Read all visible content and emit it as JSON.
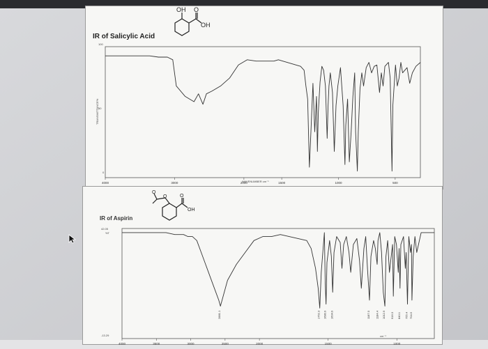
{
  "chart_data": [
    {
      "type": "line",
      "title": "IR of Salicylic Acid",
      "ylabel": "TRANSMITTANCE%",
      "xlabel": "WAVENUMBER cm⁻¹",
      "y_ticks": [
        "100",
        "50",
        "0"
      ],
      "x_ticks": [
        "4000",
        "3000",
        "2000",
        "1500",
        "1000",
        "500"
      ],
      "structure_labels": [
        "OH",
        "O",
        "OH"
      ],
      "xlim": [
        4000,
        450
      ],
      "ylim": [
        0,
        100
      ],
      "grid": false,
      "series": [
        {
          "x": [
            4000,
            3900,
            3800,
            3700,
            3600,
            3500,
            3400,
            3300,
            3240,
            3200,
            3100,
            3000,
            2950,
            2900,
            2860,
            2800,
            2700,
            2600,
            2500,
            2400,
            2300,
            2200,
            2100,
            2050,
            2000,
            1950,
            1900,
            1850,
            1800,
            1760,
            1740,
            1720,
            1700,
            1680,
            1660,
            1640,
            1620,
            1610,
            1600,
            1580,
            1560,
            1540,
            1520,
            1500,
            1490,
            1480,
            1465,
            1440,
            1420,
            1400,
            1380,
            1350,
            1320,
            1300,
            1290,
            1270,
            1250,
            1230,
            1210,
            1190,
            1180,
            1160,
            1150,
            1130,
            1110,
            1090,
            1060,
            1030,
            1000,
            970,
            940,
            910,
            890,
            870,
            850,
            810,
            790,
            770,
            760,
            730,
            710,
            690,
            670,
            650,
            600,
            570,
            540,
            500,
            450
          ],
          "y": [
            93,
            93,
            93,
            93,
            93,
            93,
            92,
            92,
            90,
            70,
            62,
            58,
            64,
            56,
            64,
            66,
            70,
            76,
            86,
            90,
            89,
            89,
            89,
            90,
            89,
            88,
            87,
            86,
            85,
            82,
            70,
            60,
            8,
            40,
            72,
            35,
            62,
            20,
            50,
            73,
            85,
            82,
            70,
            30,
            55,
            70,
            80,
            65,
            20,
            55,
            70,
            84,
            55,
            10,
            40,
            60,
            12,
            35,
            62,
            80,
            35,
            5,
            35,
            68,
            80,
            70,
            84,
            88,
            80,
            85,
            86,
            65,
            80,
            70,
            85,
            88,
            76,
            5,
            55,
            86,
            70,
            76,
            88,
            80,
            84,
            72,
            80,
            85,
            88
          ]
        }
      ]
    },
    {
      "type": "line",
      "title": "IR of Aspirin",
      "y_ticks": [
        "42.05",
        "%T",
        "-13.29"
      ],
      "x_ticks": [
        "4000",
        "3500",
        "3000",
        "2500",
        "2000",
        "1500",
        "1000"
      ],
      "xlabel_unit": "cm⁻¹",
      "structure_labels": [
        "O",
        "O",
        "O",
        "OH"
      ],
      "xlim": [
        4000,
        450
      ],
      "ylim": [
        -13.29,
        42.05
      ],
      "grid": false,
      "peak_labels": [
        "2881.1",
        "1752.3",
        "1680.9",
        "1604.9",
        "1187.0",
        "1184.4",
        "1012.9",
        "916.3",
        "840.1",
        "755.4",
        "704.5"
      ],
      "series": [
        {
          "x": [
            4000,
            3900,
            3800,
            3700,
            3600,
            3500,
            3400,
            3300,
            3250,
            3200,
            3150,
            3100,
            3050,
            3000,
            2950,
            2900,
            2881,
            2850,
            2800,
            2700,
            2600,
            2500,
            2400,
            2300,
            2200,
            2100,
            2000,
            1900,
            1850,
            1800,
            1770,
            1752,
            1735,
            1700,
            1690,
            1681,
            1670,
            1640,
            1620,
            1605,
            1590,
            1560,
            1520,
            1500,
            1480,
            1450,
            1420,
            1400,
            1370,
            1330,
            1300,
            1280,
            1250,
            1230,
            1210,
            1187,
            1170,
            1140,
            1120,
            1100,
            1090,
            1070,
            1050,
            1030,
            1012,
            1000,
            980,
            960,
            940,
            925,
            916,
            900,
            880,
            860,
            850,
            840,
            830,
            800,
            780,
            770,
            755,
            740,
            720,
            710,
            704,
            690,
            670,
            650,
            600,
            500,
            450
          ],
          "y": [
            40,
            40,
            40,
            40,
            40,
            40,
            39,
            39,
            38,
            38,
            36,
            30,
            24,
            18,
            12,
            6,
            3,
            8,
            16,
            24,
            30,
            36,
            38,
            38,
            39,
            38,
            37,
            36,
            32,
            22,
            12,
            2,
            20,
            40,
            15,
            4,
            25,
            36,
            28,
            10,
            30,
            38,
            35,
            22,
            34,
            38,
            30,
            20,
            34,
            37,
            26,
            12,
            32,
            38,
            22,
            6,
            28,
            36,
            32,
            24,
            36,
            40,
            30,
            10,
            3,
            28,
            36,
            20,
            28,
            34,
            8,
            38,
            34,
            20,
            32,
            12,
            34,
            38,
            22,
            30,
            4,
            38,
            30,
            34,
            6,
            28,
            38,
            30,
            40,
            40,
            40
          ]
        }
      ]
    }
  ]
}
